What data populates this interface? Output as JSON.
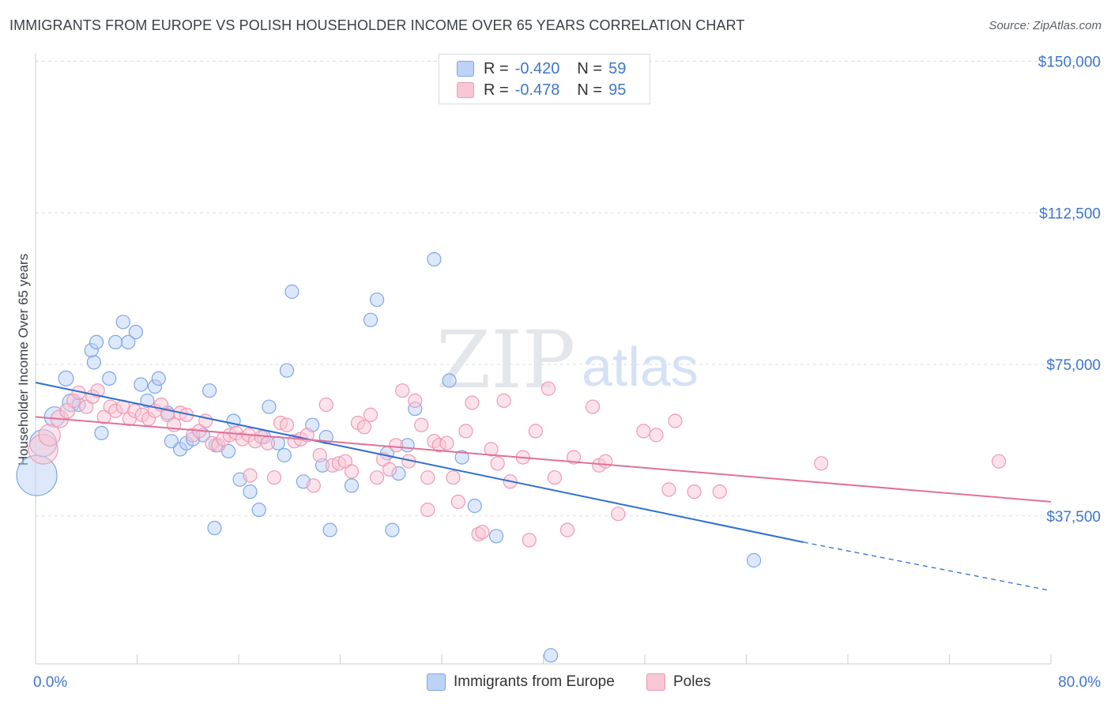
{
  "header": {
    "title": "IMMIGRANTS FROM EUROPE VS POLISH HOUSEHOLDER INCOME OVER 65 YEARS CORRELATION CHART",
    "source": "Source: ZipAtlas.com"
  },
  "watermark": {
    "zip": "ZIP",
    "atlas": "atlas"
  },
  "legend": {
    "rows": [
      {
        "r_label": "R = ",
        "r_value": "-0.420",
        "n_label": "N = ",
        "n_value": "59"
      },
      {
        "r_label": "R = ",
        "r_value": "-0.478",
        "n_label": "N = ",
        "n_value": "95"
      }
    ]
  },
  "colors": {
    "blue_fill": "#bcd3f7",
    "blue_stroke": "#7ea6e6",
    "blue_line": "#2f6fce",
    "pink_fill": "#f9c6d5",
    "pink_stroke": "#ee9ab2",
    "pink_line": "#e0709a",
    "axis_label": "#3f76cc",
    "grid": "#d9dde2"
  },
  "chart_data": {
    "type": "scatter",
    "title": "IMMIGRANTS FROM EUROPE VS POLISH HOUSEHOLDER INCOME OVER 65 YEARS CORRELATION CHART",
    "xlabel": "",
    "ylabel": "Householder Income Over 65 years",
    "xlim": [
      0,
      80
    ],
    "ylim": [
      0,
      155000
    ],
    "x_tick_labels": [
      "0.0%",
      "80.0%"
    ],
    "y_ticks": [
      {
        "value": 37500,
        "label": "$37,500"
      },
      {
        "value": 75000,
        "label": "$75,000"
      },
      {
        "value": 112500,
        "label": "$112,500"
      },
      {
        "value": 150000,
        "label": "$150,000"
      }
    ],
    "grid": true,
    "legend_position": "top-center",
    "series": [
      {
        "name": "Immigrants from Europe",
        "color": "#bcd3f7",
        "points": [
          [
            0.1,
            47500,
            3
          ],
          [
            0.6,
            55500,
            2
          ],
          [
            1.5,
            62000,
            1.5
          ],
          [
            2.8,
            65500,
            1.3
          ],
          [
            2.4,
            71500,
            1.1
          ],
          [
            3.4,
            65000,
            1
          ],
          [
            5.2,
            58000,
            1
          ],
          [
            4.6,
            75500,
            1
          ],
          [
            4.4,
            78500,
            1
          ],
          [
            4.8,
            80500,
            1
          ],
          [
            5.8,
            71500,
            1
          ],
          [
            6.3,
            80500,
            1
          ],
          [
            6.9,
            85500,
            1
          ],
          [
            7.3,
            80500,
            1
          ],
          [
            7.9,
            83000,
            1
          ],
          [
            8.3,
            70000,
            1
          ],
          [
            8.8,
            66000,
            1
          ],
          [
            9.4,
            69500,
            1
          ],
          [
            9.7,
            71500,
            1
          ],
          [
            10.4,
            63000,
            1
          ],
          [
            10.7,
            56000,
            1
          ],
          [
            11.4,
            54000,
            1
          ],
          [
            11.9,
            55500,
            1
          ],
          [
            12.4,
            56500,
            1
          ],
          [
            13.2,
            57500,
            1
          ],
          [
            13.7,
            68500,
            1
          ],
          [
            14.2,
            55000,
            1
          ],
          [
            15.2,
            53500,
            1
          ],
          [
            15.6,
            61000,
            1
          ],
          [
            16.1,
            46500,
            1
          ],
          [
            16.9,
            43500,
            1
          ],
          [
            17.6,
            39000,
            1
          ],
          [
            18.4,
            64500,
            1
          ],
          [
            19.1,
            55500,
            1
          ],
          [
            19.6,
            52500,
            1
          ],
          [
            19.8,
            73500,
            1
          ],
          [
            20.2,
            93000,
            1
          ],
          [
            21.1,
            46000,
            1
          ],
          [
            21.8,
            60000,
            1
          ],
          [
            22.6,
            50000,
            1
          ],
          [
            22.9,
            57000,
            1
          ],
          [
            23.2,
            34000,
            1
          ],
          [
            26.4,
            86000,
            1
          ],
          [
            26.9,
            91000,
            1
          ],
          [
            27.7,
            53000,
            1
          ],
          [
            28.1,
            34000,
            1
          ],
          [
            28.6,
            48000,
            1
          ],
          [
            29.3,
            55000,
            1
          ],
          [
            29.9,
            64000,
            1
          ],
          [
            31.4,
            101000,
            1
          ],
          [
            32.6,
            71000,
            1
          ],
          [
            33.6,
            52000,
            1
          ],
          [
            34.6,
            40000,
            1
          ],
          [
            36.3,
            32500,
            1
          ],
          [
            14.1,
            34500,
            1
          ],
          [
            40.6,
            3000,
            1
          ],
          [
            56.6,
            26500,
            1
          ],
          [
            24.9,
            45000,
            1
          ],
          [
            18.0,
            57000,
            1
          ]
        ]
      },
      {
        "name": "Poles",
        "color": "#f9c6d5",
        "points": [
          [
            0.6,
            54000,
            2.2
          ],
          [
            1.1,
            57500,
            1.6
          ],
          [
            1.9,
            61500,
            1.3
          ],
          [
            2.5,
            63500,
            1.1
          ],
          [
            3.0,
            66000,
            1
          ],
          [
            3.4,
            68000,
            1
          ],
          [
            4.0,
            64500,
            1
          ],
          [
            4.5,
            67000,
            1
          ],
          [
            4.9,
            68500,
            1
          ],
          [
            5.4,
            62000,
            1
          ],
          [
            5.9,
            64500,
            1
          ],
          [
            6.3,
            63500,
            1
          ],
          [
            6.9,
            64500,
            1
          ],
          [
            7.4,
            61500,
            1
          ],
          [
            7.8,
            63500,
            1
          ],
          [
            8.4,
            62500,
            1
          ],
          [
            8.9,
            61500,
            1
          ],
          [
            9.4,
            63500,
            1
          ],
          [
            9.9,
            65000,
            1
          ],
          [
            10.4,
            62500,
            1
          ],
          [
            10.9,
            60000,
            1
          ],
          [
            11.4,
            63000,
            1
          ],
          [
            11.9,
            62500,
            1
          ],
          [
            12.4,
            57500,
            1
          ],
          [
            12.9,
            58500,
            1
          ],
          [
            13.4,
            61000,
            1
          ],
          [
            13.9,
            55500,
            1
          ],
          [
            14.4,
            55000,
            1
          ],
          [
            14.8,
            56500,
            1
          ],
          [
            15.3,
            57500,
            1
          ],
          [
            15.8,
            58000,
            1
          ],
          [
            16.3,
            56500,
            1
          ],
          [
            16.8,
            57500,
            1
          ],
          [
            17.3,
            56000,
            1
          ],
          [
            17.8,
            57000,
            1
          ],
          [
            18.3,
            55500,
            1
          ],
          [
            18.8,
            47000,
            1
          ],
          [
            19.3,
            60500,
            1
          ],
          [
            19.8,
            60000,
            1
          ],
          [
            20.4,
            56000,
            1
          ],
          [
            20.9,
            56500,
            1
          ],
          [
            21.4,
            57500,
            1
          ],
          [
            21.9,
            45000,
            1
          ],
          [
            22.4,
            52500,
            1
          ],
          [
            22.9,
            65000,
            1
          ],
          [
            23.4,
            50000,
            1
          ],
          [
            23.9,
            50500,
            1
          ],
          [
            24.4,
            51000,
            1
          ],
          [
            24.9,
            48500,
            1
          ],
          [
            25.4,
            60500,
            1
          ],
          [
            25.9,
            59500,
            1
          ],
          [
            26.4,
            62500,
            1
          ],
          [
            26.9,
            47000,
            1
          ],
          [
            27.4,
            51500,
            1
          ],
          [
            27.9,
            49000,
            1
          ],
          [
            28.4,
            55000,
            1
          ],
          [
            28.9,
            68500,
            1
          ],
          [
            29.4,
            51000,
            1
          ],
          [
            29.9,
            66000,
            1
          ],
          [
            30.4,
            60000,
            1
          ],
          [
            30.9,
            47000,
            1
          ],
          [
            31.4,
            56000,
            1
          ],
          [
            31.8,
            55000,
            1
          ],
          [
            32.4,
            55500,
            1
          ],
          [
            32.9,
            47000,
            1
          ],
          [
            33.3,
            41000,
            1
          ],
          [
            33.9,
            58500,
            1
          ],
          [
            34.4,
            65500,
            1
          ],
          [
            34.9,
            33000,
            1
          ],
          [
            35.2,
            33500,
            1
          ],
          [
            35.9,
            54000,
            1
          ],
          [
            36.4,
            50500,
            1
          ],
          [
            36.9,
            66000,
            1
          ],
          [
            37.4,
            46000,
            1
          ],
          [
            38.4,
            52000,
            1
          ],
          [
            38.9,
            31500,
            1
          ],
          [
            39.4,
            58500,
            1
          ],
          [
            40.4,
            69000,
            1
          ],
          [
            40.9,
            47000,
            1
          ],
          [
            41.9,
            34000,
            1
          ],
          [
            42.4,
            52000,
            1
          ],
          [
            43.9,
            64500,
            1
          ],
          [
            44.4,
            50000,
            1
          ],
          [
            44.9,
            51000,
            1
          ],
          [
            45.9,
            38000,
            1
          ],
          [
            47.9,
            58500,
            1
          ],
          [
            48.9,
            57500,
            1
          ],
          [
            49.9,
            44000,
            1
          ],
          [
            50.4,
            61000,
            1
          ],
          [
            51.9,
            43500,
            1
          ],
          [
            53.9,
            43500,
            1
          ],
          [
            61.9,
            50500,
            1
          ],
          [
            75.9,
            51000,
            1
          ],
          [
            30.9,
            39000,
            1
          ],
          [
            16.9,
            47500,
            1
          ]
        ]
      }
    ],
    "trend_lines": [
      {
        "series": "Immigrants from Europe",
        "x0": 0,
        "y0": 70500,
        "x1": 60.5,
        "y1": 31000,
        "dash_to_x": 80,
        "dash_to_y": 19000
      },
      {
        "series": "Poles",
        "x0": 0,
        "y0": 62000,
        "x1": 80,
        "y1": 41000
      }
    ]
  },
  "bottom_legend": {
    "items": [
      {
        "label": "Immigrants from Europe"
      },
      {
        "label": "Poles"
      }
    ]
  }
}
